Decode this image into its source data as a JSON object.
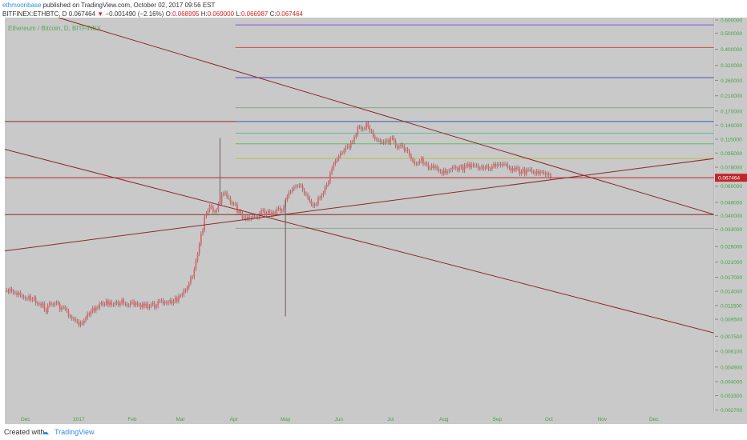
{
  "header": {
    "author": "ethmoonbase",
    "published": "published on TradingView.com, October 02, 2017 09:56 EST",
    "symbol": "BITFINEX:ETHBTC, D",
    "last": "0.067464",
    "change_arrow": "▼",
    "change": "−0.001490 (−2.16%)",
    "o_label": "O:",
    "o_value": "0.068995",
    "h_label": "H:",
    "h_value": "0.069000",
    "l_label": "L:",
    "l_value": "0.066987",
    "c_label": "C:",
    "c_value": "0.067464"
  },
  "footer": {
    "created_with": "Created with",
    "brand": "TradingView"
  },
  "colors": {
    "plot_bg": "#c9c9c9",
    "axis_bg": "#c9c9c9",
    "candle": "#e06060",
    "wick": "#7a4545",
    "trend_line": "#8c2a2a",
    "axis_text": "#44a544",
    "price_label_bg": "#c0262a"
  },
  "chart_data": {
    "type": "candlestick",
    "watermark": "Ethereum / Bitcoin, D, BITFINEX",
    "log_scale": true,
    "y_tick_labels": [
      "0.600000",
      "0.500000",
      "0.400000",
      "0.320000",
      "0.260000",
      "0.210000",
      "0.170000",
      "0.140000",
      "0.115000",
      "0.095000",
      "0.078000",
      "0.060000",
      "0.048000",
      "0.040000",
      "0.033000",
      "0.026000",
      "0.021000",
      "0.017000",
      "0.014000",
      "0.011500",
      "0.009500",
      "0.007500",
      "0.006100",
      "0.004900",
      "0.004000",
      "0.003300",
      "0.002700"
    ],
    "y_tick_values": [
      0.6,
      0.5,
      0.4,
      0.32,
      0.26,
      0.21,
      0.17,
      0.14,
      0.115,
      0.095,
      0.078,
      0.06,
      0.048,
      0.04,
      0.033,
      0.026,
      0.021,
      0.017,
      0.014,
      0.0115,
      0.0095,
      0.0075,
      0.0061,
      0.0049,
      0.004,
      0.0033,
      0.0027
    ],
    "x_tick_labels": [
      "Dec",
      "2017",
      "Feb",
      "Mar",
      "Apr",
      "May",
      "Jun",
      "Jul",
      "Aug",
      "Sep",
      "Oct",
      "Nov",
      "Dec"
    ],
    "x_tick_dates": [
      "2016-12-01",
      "2017-01-01",
      "2017-02-01",
      "2017-03-01",
      "2017-04-01",
      "2017-05-01",
      "2017-06-01",
      "2017-07-01",
      "2017-08-01",
      "2017-09-01",
      "2017-10-01",
      "2017-11-01",
      "2017-12-01"
    ],
    "x_range": [
      "2016-11-19",
      "2018-01-05"
    ],
    "y_range": [
      0.0026,
      0.62
    ],
    "current_price_label": "0.067464",
    "close_series": [
      {
        "date": "2016-11-20",
        "close": 0.0142
      },
      {
        "date": "2016-11-25",
        "close": 0.0138
      },
      {
        "date": "2016-11-30",
        "close": 0.0132
      },
      {
        "date": "2016-12-05",
        "close": 0.0125
      },
      {
        "date": "2016-12-10",
        "close": 0.0118
      },
      {
        "date": "2016-12-13",
        "close": 0.0107
      },
      {
        "date": "2016-12-15",
        "close": 0.0118
      },
      {
        "date": "2016-12-20",
        "close": 0.0115
      },
      {
        "date": "2016-12-25",
        "close": 0.0104
      },
      {
        "date": "2016-12-29",
        "close": 0.0092
      },
      {
        "date": "2017-01-02",
        "close": 0.009
      },
      {
        "date": "2017-01-06",
        "close": 0.01
      },
      {
        "date": "2017-01-10",
        "close": 0.011
      },
      {
        "date": "2017-01-15",
        "close": 0.0118
      },
      {
        "date": "2017-01-20",
        "close": 0.0121
      },
      {
        "date": "2017-01-25",
        "close": 0.012
      },
      {
        "date": "2017-02-01",
        "close": 0.0118
      },
      {
        "date": "2017-02-07",
        "close": 0.0116
      },
      {
        "date": "2017-02-14",
        "close": 0.0115
      },
      {
        "date": "2017-02-18",
        "close": 0.0124
      },
      {
        "date": "2017-02-22",
        "close": 0.0119
      },
      {
        "date": "2017-02-27",
        "close": 0.0125
      },
      {
        "date": "2017-03-03",
        "close": 0.014
      },
      {
        "date": "2017-03-07",
        "close": 0.0165
      },
      {
        "date": "2017-03-09",
        "close": 0.019
      },
      {
        "date": "2017-03-11",
        "close": 0.024
      },
      {
        "date": "2017-03-13",
        "close": 0.03
      },
      {
        "date": "2017-03-15",
        "close": 0.038
      },
      {
        "date": "2017-03-17",
        "close": 0.044
      },
      {
        "date": "2017-03-19",
        "close": 0.046
      },
      {
        "date": "2017-03-21",
        "close": 0.042
      },
      {
        "date": "2017-03-24",
        "close": 0.049
      },
      {
        "date": "2017-03-26",
        "close": 0.055
      },
      {
        "date": "2017-03-29",
        "close": 0.05
      },
      {
        "date": "2017-04-02",
        "close": 0.045
      },
      {
        "date": "2017-04-05",
        "close": 0.04
      },
      {
        "date": "2017-04-09",
        "close": 0.038
      },
      {
        "date": "2017-04-13",
        "close": 0.039
      },
      {
        "date": "2017-04-17",
        "close": 0.042
      },
      {
        "date": "2017-04-21",
        "close": 0.041
      },
      {
        "date": "2017-04-25",
        "close": 0.042
      },
      {
        "date": "2017-04-29",
        "close": 0.044
      },
      {
        "date": "2017-05-03",
        "close": 0.054
      },
      {
        "date": "2017-05-07",
        "close": 0.062
      },
      {
        "date": "2017-05-10",
        "close": 0.06
      },
      {
        "date": "2017-05-13",
        "close": 0.052
      },
      {
        "date": "2017-05-16",
        "close": 0.046
      },
      {
        "date": "2017-05-19",
        "close": 0.048
      },
      {
        "date": "2017-05-22",
        "close": 0.055
      },
      {
        "date": "2017-05-25",
        "close": 0.06
      },
      {
        "date": "2017-05-28",
        "close": 0.078
      },
      {
        "date": "2017-06-01",
        "close": 0.09
      },
      {
        "date": "2017-06-04",
        "close": 0.1
      },
      {
        "date": "2017-06-07",
        "close": 0.105
      },
      {
        "date": "2017-06-10",
        "close": 0.115
      },
      {
        "date": "2017-06-12",
        "close": 0.14
      },
      {
        "date": "2017-06-15",
        "close": 0.135
      },
      {
        "date": "2017-06-18",
        "close": 0.14
      },
      {
        "date": "2017-06-21",
        "close": 0.12
      },
      {
        "date": "2017-06-25",
        "close": 0.115
      },
      {
        "date": "2017-06-28",
        "close": 0.11
      },
      {
        "date": "2017-07-02",
        "close": 0.115
      },
      {
        "date": "2017-07-05",
        "close": 0.105
      },
      {
        "date": "2017-07-09",
        "close": 0.1
      },
      {
        "date": "2017-07-12",
        "close": 0.092
      },
      {
        "date": "2017-07-16",
        "close": 0.08
      },
      {
        "date": "2017-07-19",
        "close": 0.086
      },
      {
        "date": "2017-07-23",
        "close": 0.08
      },
      {
        "date": "2017-07-27",
        "close": 0.076
      },
      {
        "date": "2017-08-01",
        "close": 0.074
      },
      {
        "date": "2017-08-05",
        "close": 0.078
      },
      {
        "date": "2017-08-09",
        "close": 0.075
      },
      {
        "date": "2017-08-13",
        "close": 0.078
      },
      {
        "date": "2017-08-17",
        "close": 0.08
      },
      {
        "date": "2017-08-21",
        "close": 0.079
      },
      {
        "date": "2017-08-25",
        "close": 0.076
      },
      {
        "date": "2017-08-29",
        "close": 0.08
      },
      {
        "date": "2017-09-02",
        "close": 0.082
      },
      {
        "date": "2017-09-06",
        "close": 0.079
      },
      {
        "date": "2017-09-10",
        "close": 0.076
      },
      {
        "date": "2017-09-14",
        "close": 0.074
      },
      {
        "date": "2017-09-18",
        "close": 0.073
      },
      {
        "date": "2017-09-22",
        "close": 0.0735
      },
      {
        "date": "2017-09-26",
        "close": 0.072
      },
      {
        "date": "2017-09-29",
        "close": 0.07
      },
      {
        "date": "2017-10-02",
        "close": 0.067464
      }
    ],
    "spikes": [
      {
        "date": "2017-03-24",
        "high": 0.117,
        "low": 0.047
      },
      {
        "date": "2017-05-01",
        "high": 0.05,
        "low": 0.0099
      }
    ],
    "horizontal_lines": [
      {
        "start": "2017-04-02",
        "price": 0.56,
        "color": "#7f54d6"
      },
      {
        "start": "2017-04-02",
        "price": 0.41,
        "color": "#d24b4b"
      },
      {
        "start": "2017-04-02",
        "price": 0.27,
        "color": "#4a4ad0"
      },
      {
        "start": "2017-04-02",
        "price": 0.178,
        "color": "#8aa68a"
      },
      {
        "start": "2016-11-19",
        "price": 0.147,
        "color": "#8c2a2a"
      },
      {
        "start": "2017-04-02",
        "price": 0.147,
        "color": "#3f7fc7"
      },
      {
        "start": "2017-04-02",
        "price": 0.125,
        "color": "#5fbf9a"
      },
      {
        "start": "2017-04-02",
        "price": 0.108,
        "color": "#5fbf5f"
      },
      {
        "start": "2017-04-02",
        "price": 0.088,
        "color": "#b5c246"
      },
      {
        "start": "2016-11-19",
        "price": 0.067464,
        "color": "#c0262a"
      },
      {
        "start": "2016-11-19",
        "price": 0.0405,
        "color": "#8c2a2a"
      },
      {
        "start": "2017-04-02",
        "price": 0.0335,
        "color": "#8fa68f"
      }
    ],
    "trend_lines": [
      {
        "from": {
          "date": "2016-11-19",
          "price": 0.1
        },
        "to": {
          "date": "2018-01-05",
          "price": 0.00785
        }
      },
      {
        "from": {
          "date": "2016-12-20",
          "price": 0.62
        },
        "to": {
          "date": "2018-01-05",
          "price": 0.0405
        }
      },
      {
        "from": {
          "date": "2016-11-19",
          "price": 0.0245
        },
        "to": {
          "date": "2018-01-05",
          "price": 0.088
        }
      }
    ]
  }
}
